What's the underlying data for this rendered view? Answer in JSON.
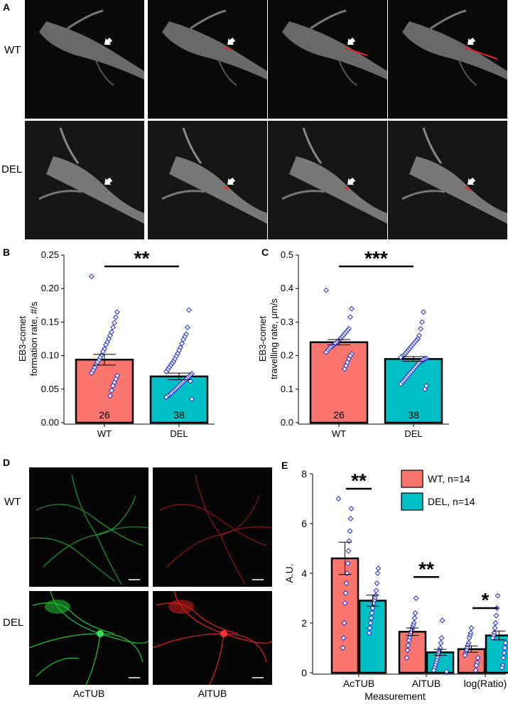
{
  "panel_a": {
    "letter": "A",
    "rows": [
      {
        "label": "WT",
        "frames": [
          0,
          1,
          2,
          3
        ]
      },
      {
        "label": "DEL",
        "frames": [
          0,
          1,
          2,
          3
        ]
      }
    ]
  },
  "panel_d": {
    "letter": "D",
    "rows": [
      {
        "label": "WT"
      },
      {
        "label": "DEL"
      }
    ],
    "column_captions": [
      "AcTUB",
      "AlTUB"
    ],
    "channel_colors": {
      "AcTUB": "#22c43a",
      "AlTUB": "#e02424"
    }
  },
  "colors": {
    "wt": "#f8766d",
    "del": "#00bfc4",
    "point": "#1f2fd6",
    "track": "#e0282a"
  },
  "chart_data": [
    {
      "id": "B",
      "letter": "B",
      "type": "bar",
      "categories": [
        "WT",
        "DEL"
      ],
      "values": [
        0.094,
        0.069
      ],
      "errors": [
        0.008,
        0.005
      ],
      "n_labels": [
        "26",
        "38"
      ],
      "ylabel_lines": [
        "EB3-comet",
        "formation rate, #/s"
      ],
      "ylim": [
        0,
        0.25
      ],
      "yticks": [
        0.0,
        0.05,
        0.1,
        0.15,
        0.2,
        0.25
      ],
      "ytick_labels": [
        "0.00",
        "0.05",
        "0.10",
        "0.15",
        "0.20",
        "0.25"
      ],
      "significance": "**",
      "points": [
        [
          0.218,
          0.165,
          0.157,
          0.149,
          0.142,
          0.135,
          0.13,
          0.125,
          0.12,
          0.116,
          0.11,
          0.106,
          0.101,
          0.097,
          0.093,
          0.09,
          0.086,
          0.082,
          0.078,
          0.074,
          0.07,
          0.065,
          0.06,
          0.055,
          0.048,
          0.04
        ],
        [
          0.168,
          0.142,
          0.132,
          0.128,
          0.124,
          0.118,
          0.112,
          0.108,
          0.103,
          0.099,
          0.095,
          0.091,
          0.088,
          0.085,
          0.082,
          0.079,
          0.076,
          0.073,
          0.071,
          0.069,
          0.067,
          0.065,
          0.063,
          0.061,
          0.059,
          0.057,
          0.055,
          0.053,
          0.051,
          0.049,
          0.047,
          0.045,
          0.043,
          0.041,
          0.04,
          0.038,
          0.035,
          0.062
        ]
      ]
    },
    {
      "id": "C",
      "letter": "C",
      "type": "bar",
      "categories": [
        "WT",
        "DEL"
      ],
      "values": [
        0.24,
        0.19
      ],
      "errors": [
        0.008,
        0.007
      ],
      "n_labels": [
        "26",
        "38"
      ],
      "ylabel_lines": [
        "EB3-comet",
        "travelling rate, μm/s"
      ],
      "ylim": [
        0,
        0.5
      ],
      "yticks": [
        0.0,
        0.1,
        0.2,
        0.3,
        0.4,
        0.5
      ],
      "ytick_labels": [
        "0.0",
        "0.1",
        "0.2",
        "0.3",
        "0.4",
        "0.5"
      ],
      "significance": "***",
      "points": [
        [
          0.395,
          0.34,
          0.315,
          0.28,
          0.275,
          0.27,
          0.265,
          0.26,
          0.255,
          0.25,
          0.245,
          0.242,
          0.238,
          0.235,
          0.23,
          0.228,
          0.225,
          0.22,
          0.215,
          0.21,
          0.205,
          0.2,
          0.19,
          0.18,
          0.17,
          0.16
        ],
        [
          0.33,
          0.3,
          0.28,
          0.26,
          0.25,
          0.245,
          0.24,
          0.235,
          0.23,
          0.225,
          0.22,
          0.215,
          0.21,
          0.205,
          0.2,
          0.198,
          0.195,
          0.192,
          0.19,
          0.188,
          0.185,
          0.182,
          0.18,
          0.175,
          0.17,
          0.165,
          0.16,
          0.155,
          0.15,
          0.145,
          0.14,
          0.135,
          0.13,
          0.125,
          0.12,
          0.115,
          0.11,
          0.1
        ]
      ]
    },
    {
      "id": "E",
      "letter": "E",
      "type": "bar",
      "categories": [
        "AcTUB",
        "AlTUB",
        "log(Ratio)"
      ],
      "xlabel": "Measurement",
      "ylabel": "A.U.",
      "ylim": [
        0,
        8
      ],
      "yticks": [
        0,
        2,
        4,
        6,
        8
      ],
      "ytick_labels": [
        "0",
        "2",
        "4",
        "6",
        "8"
      ],
      "legend": [
        "WT, n=14",
        "DEL, n=14"
      ],
      "significance": [
        "**",
        "**",
        "*"
      ],
      "series": [
        {
          "name": "WT, n=14",
          "values": [
            4.6,
            1.65,
            0.95
          ],
          "errors": [
            0.65,
            0.15,
            0.13
          ],
          "points": [
            [
              7.0,
              6.6,
              6.2,
              5.7,
              5.3,
              4.9,
              4.4,
              4.0,
              3.6,
              3.2,
              2.8,
              2.0,
              1.4,
              1.0
            ],
            [
              3.0,
              2.4,
              2.2,
              2.0,
              1.9,
              1.8,
              1.7,
              1.6,
              1.5,
              1.4,
              1.3,
              1.1,
              0.9,
              0.6
            ],
            [
              1.8,
              1.6,
              1.5,
              1.4,
              1.2,
              1.1,
              1.0,
              0.9,
              0.8,
              0.7,
              0.6,
              0.4,
              0.3,
              0.1
            ]
          ]
        },
        {
          "name": "DEL, n=14",
          "values": [
            2.9,
            0.82,
            1.5
          ],
          "errors": [
            0.22,
            0.12,
            0.18
          ],
          "points": [
            [
              4.2,
              4.0,
              3.6,
              3.3,
              3.1,
              3.0,
              2.9,
              2.8,
              2.6,
              2.4,
              2.2,
              2.0,
              1.8,
              1.6
            ],
            [
              2.1,
              1.4,
              1.2,
              1.0,
              0.9,
              0.8,
              0.7,
              0.6,
              0.5,
              0.4,
              0.3,
              0.2,
              0.1,
              0.05
            ],
            [
              3.1,
              2.6,
              2.3,
              2.0,
              1.8,
              1.6,
              1.5,
              1.4,
              1.2,
              1.0,
              0.8,
              0.6,
              0.3,
              0.2
            ]
          ]
        }
      ]
    }
  ]
}
